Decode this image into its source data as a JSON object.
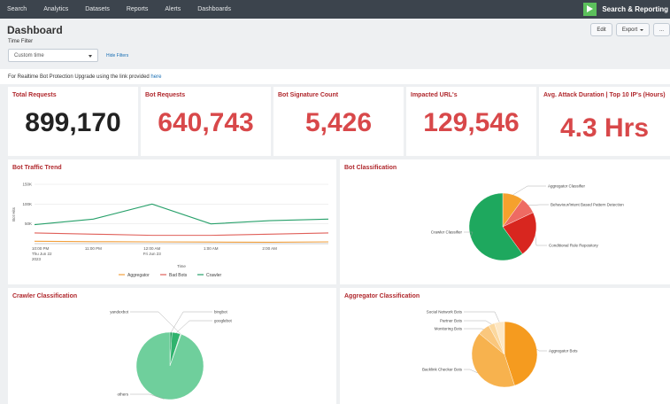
{
  "nav": {
    "items": [
      "Search",
      "Analytics",
      "Datasets",
      "Reports",
      "Alerts",
      "Dashboards"
    ],
    "app_name": "Search & Reporting"
  },
  "header": {
    "title": "Dashboard",
    "edit_label": "Edit",
    "export_label": "Export",
    "more_label": "..."
  },
  "filters": {
    "label": "Time Filter",
    "time_value": "Custom time",
    "hide_label": "Hide Filters"
  },
  "notice": {
    "text": "For Realtime Bot Protection Upgrade using the link provided",
    "link_text": "here"
  },
  "kpis": [
    {
      "title": "Total Requests",
      "value": "899,170",
      "color": "#222222"
    },
    {
      "title": "Bot Requests",
      "value": "640,743",
      "color": "#d8484a"
    },
    {
      "title": "Bot Signature Count",
      "value": "5,426",
      "color": "#d8484a"
    },
    {
      "title": "Impacted URL's",
      "value": "129,546",
      "color": "#d8484a"
    },
    {
      "title": "Avg. Attack Duration | Top 10 IP's (Hours)",
      "value": "4.3 Hrs",
      "color": "#d8484a"
    }
  ],
  "panels": {
    "trend_title": "Bot Traffic Trend",
    "bot_class_title": "Bot Classification",
    "crawler_title": "Crawler Classification",
    "aggregator_title": "Aggregator Classification"
  },
  "chart_data": [
    {
      "type": "line",
      "title": "Bot Traffic Trend",
      "xlabel": "Time",
      "ylabel": "Bot Hits",
      "x": [
        "10:00 PM Thu Jun 22 2023",
        "11:00 PM",
        "12:00 AM Fri Jun 23",
        "1:00 AM",
        "2:00 AM",
        ""
      ],
      "x_tick_labels": [
        [
          "10:00 PM",
          "Thu Jun 22",
          "2023"
        ],
        [
          "11:00 PM"
        ],
        [
          "12:00 AM",
          "Fri Jun 23"
        ],
        [
          "1:00 AM"
        ],
        [
          "2:00 AM"
        ]
      ],
      "yticks": [
        "150K",
        "100K",
        "50K"
      ],
      "ylim": [
        0,
        150000
      ],
      "series": [
        {
          "name": "Aggregator",
          "color": "#f2a03d",
          "values": [
            6000,
            5000,
            4500,
            4000,
            3500,
            4500
          ]
        },
        {
          "name": "Bad Bots",
          "color": "#e0605a",
          "values": [
            27000,
            24000,
            21000,
            21000,
            24000,
            27000
          ]
        },
        {
          "name": "Crawler",
          "color": "#27a06a",
          "values": [
            48000,
            62000,
            100000,
            50000,
            58000,
            62000
          ]
        }
      ],
      "legend_position": "bottom"
    },
    {
      "type": "pie",
      "title": "Bot Classification",
      "labels": [
        "Aggregator Classifier",
        "Behaviour/Intent Based Pattern Detection",
        "Conditional Rule Repository",
        "Crawler Classifier"
      ],
      "values": [
        10,
        8,
        22,
        60
      ],
      "colors": [
        "#f5a12d",
        "#ee6b63",
        "#d8261f",
        "#1ea85e"
      ]
    },
    {
      "type": "pie",
      "title": "Crawler Classification",
      "labels": [
        "bingbot",
        "googlebot",
        "yandexbot",
        "others"
      ],
      "values": [
        1,
        4,
        0.5,
        94.5
      ],
      "colors": [
        "#1e9c59",
        "#2fb36d",
        "#bfe8d0",
        "#6fcf9c"
      ]
    },
    {
      "type": "pie",
      "title": "Aggregator Classification",
      "labels": [
        "Aggregator Bots",
        "Backlink Checker Bots",
        "Monitoring Bots",
        "Partner Bots",
        "Social Network Bots"
      ],
      "values": [
        45,
        41,
        6,
        3,
        5
      ],
      "colors": [
        "#f59b1f",
        "#f7b24e",
        "#fac77d",
        "#fbd89f",
        "#fde7c4"
      ]
    }
  ]
}
